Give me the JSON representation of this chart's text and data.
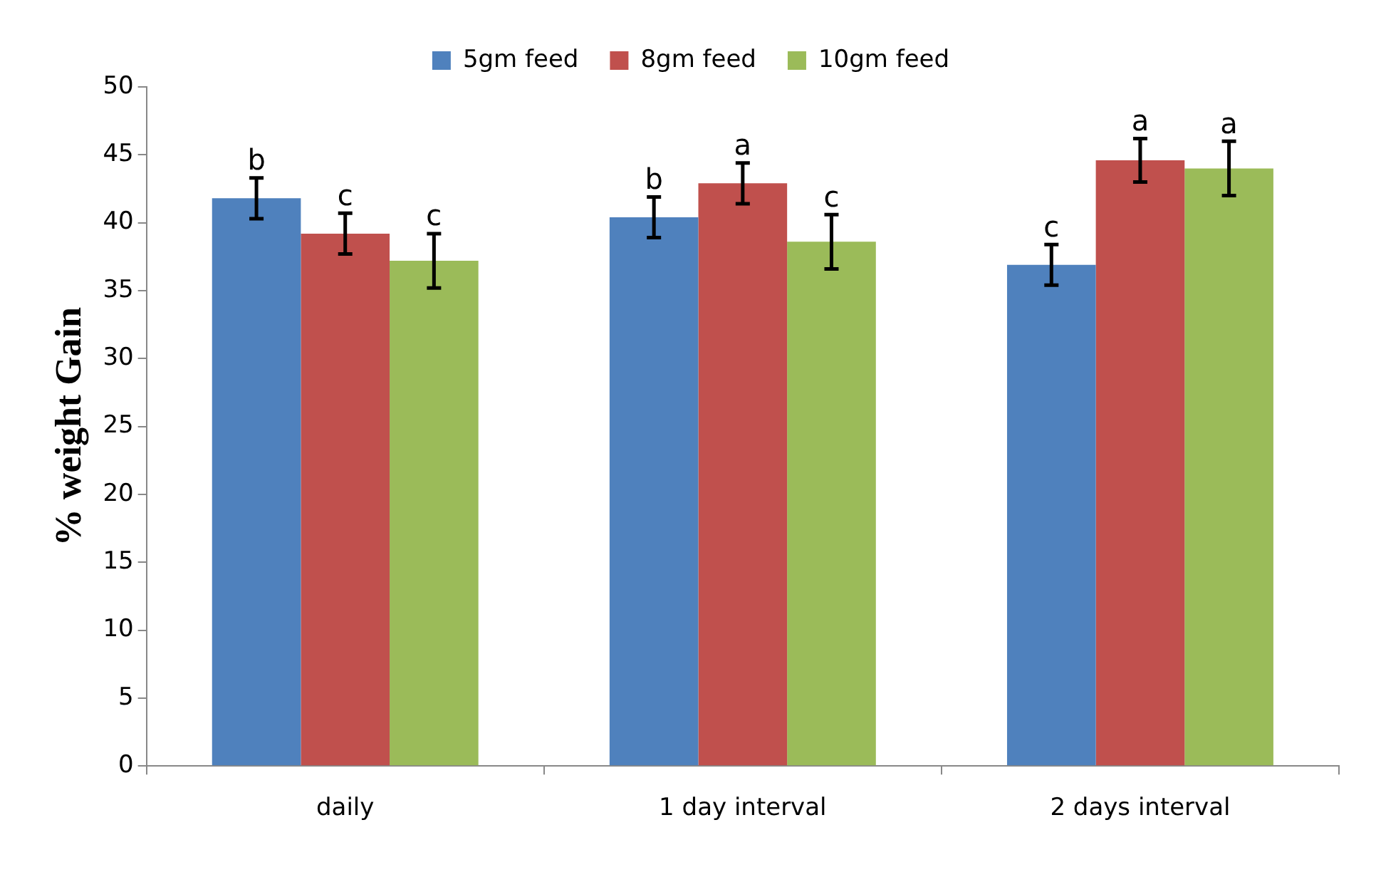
{
  "chart_data": {
    "type": "bar",
    "ylabel": "% weight Gain",
    "categories": [
      "daily",
      "1 day interval",
      "2 days interval"
    ],
    "series": [
      {
        "name": "5gm feed",
        "color": "#4f81bd",
        "values": [
          41.8,
          40.4,
          36.9
        ],
        "errors": [
          1.5,
          1.5,
          1.5
        ],
        "value_labels": [
          "b",
          "b",
          "c"
        ]
      },
      {
        "name": "8gm feed",
        "color": "#c0504d",
        "values": [
          39.2,
          42.9,
          44.6
        ],
        "errors": [
          1.5,
          1.5,
          1.6
        ],
        "value_labels": [
          "c",
          "a",
          "a"
        ]
      },
      {
        "name": "10gm feed",
        "color": "#9bbb59",
        "values": [
          37.2,
          38.6,
          44.0
        ],
        "errors": [
          2,
          2,
          2
        ],
        "value_labels": [
          "c",
          "c",
          "a"
        ]
      }
    ],
    "ylim": [
      0,
      50
    ],
    "yticks": [
      0,
      5,
      10,
      15,
      20,
      25,
      30,
      35,
      40,
      45,
      50
    ],
    "grid": false,
    "legend": "top"
  }
}
